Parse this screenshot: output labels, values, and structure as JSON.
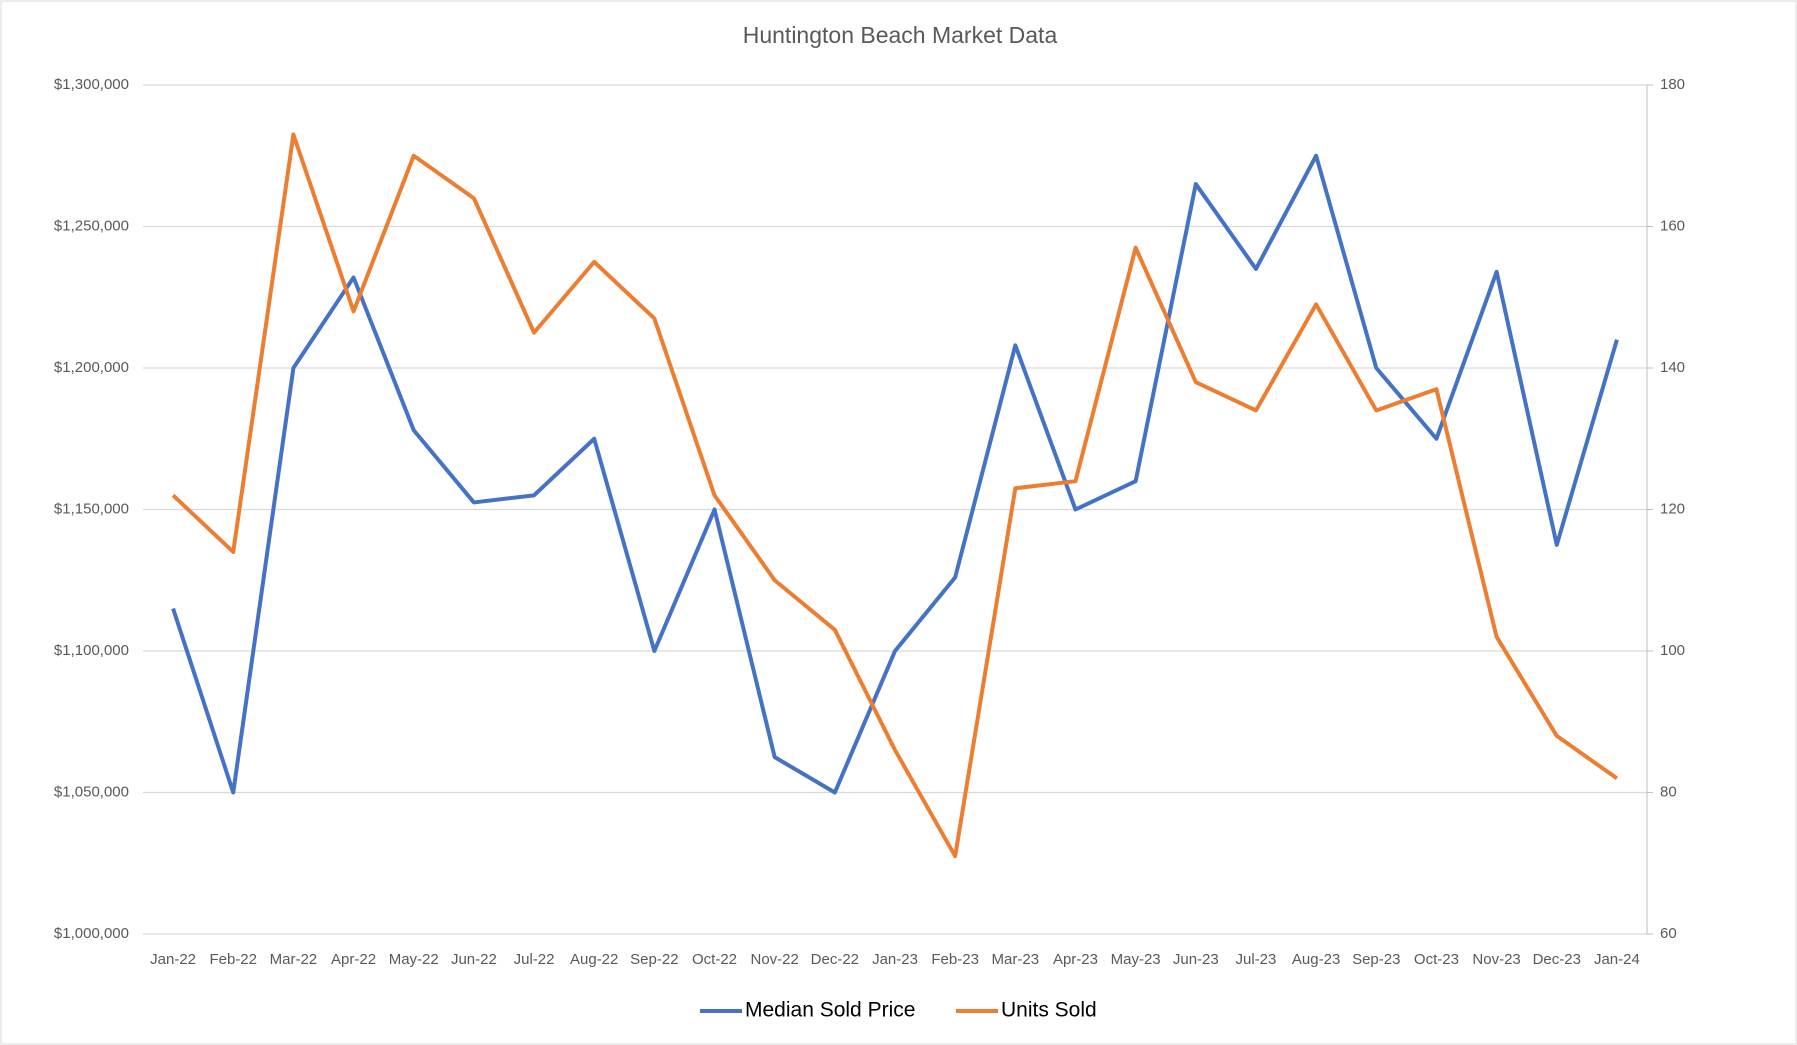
{
  "chart_data": {
    "type": "line",
    "title": "Huntington Beach Market Data",
    "categories": [
      "Jan-22",
      "Feb-22",
      "Mar-22",
      "Apr-22",
      "May-22",
      "Jun-22",
      "Jul-22",
      "Aug-22",
      "Sep-22",
      "Oct-22",
      "Nov-22",
      "Dec-22",
      "Jan-23",
      "Feb-23",
      "Mar-23",
      "Apr-23",
      "May-23",
      "Jun-23",
      "Jul-23",
      "Aug-23",
      "Sep-23",
      "Oct-23",
      "Nov-23",
      "Dec-23",
      "Jan-24"
    ],
    "series": [
      {
        "name": "Median Sold Price",
        "color": "#4472c4",
        "axis": "y",
        "values": [
          1115000,
          1050000,
          1200000,
          1232000,
          1178000,
          1152500,
          1155000,
          1175000,
          1100000,
          1150000,
          1062500,
          1050000,
          1100000,
          1126000,
          1208000,
          1150000,
          1160000,
          1265000,
          1235000,
          1275000,
          1200000,
          1175000,
          1234000,
          1137500,
          1210000
        ]
      },
      {
        "name": "Units Sold",
        "color": "#ed7d31",
        "axis": "y2",
        "values": [
          122,
          114,
          173,
          148,
          170,
          164,
          145,
          155,
          147,
          122,
          110,
          103,
          86,
          71,
          123,
          124,
          157,
          138,
          134,
          149,
          134,
          137,
          102,
          88,
          82
        ]
      }
    ],
    "ylim": [
      1000000,
      1300000
    ],
    "yticks": [
      {
        "value": 1000000,
        "label": "$1,000,000"
      },
      {
        "value": 1050000,
        "label": "$1,050,000"
      },
      {
        "value": 1100000,
        "label": "$1,100,000"
      },
      {
        "value": 1150000,
        "label": "$1,150,000"
      },
      {
        "value": 1200000,
        "label": "$1,200,000"
      },
      {
        "value": 1250000,
        "label": "$1,250,000"
      },
      {
        "value": 1300000,
        "label": "$1,300,000"
      }
    ],
    "y2lim": [
      60,
      180
    ],
    "y2ticks": [
      60,
      80,
      100,
      120,
      140,
      160,
      180
    ],
    "grid": true,
    "legend": "bottom"
  }
}
